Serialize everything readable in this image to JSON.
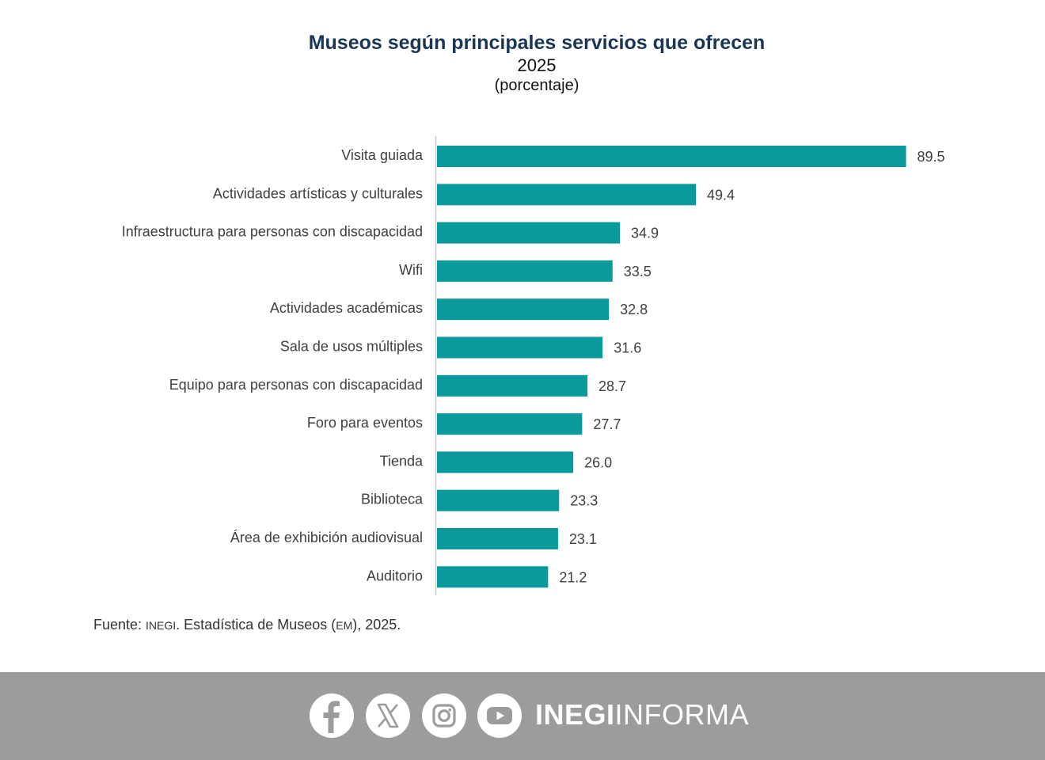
{
  "header": {
    "title": "Museos según principales servicios que ofrecen",
    "subtitle": "2025",
    "unit": "(porcentaje)"
  },
  "chart_data": {
    "type": "bar",
    "orientation": "horizontal",
    "title": "Museos según principales servicios que ofrecen",
    "subtitle": "2025",
    "ylabel": "(porcentaje)",
    "categories": [
      "Visita guiada",
      "Actividades artísticas y culturales",
      "Infraestructura para personas con discapacidad",
      "Wifi",
      "Actividades académicas",
      "Sala de usos múltiples",
      "Equipo para personas con discapacidad",
      "Foro para eventos",
      "Tienda",
      "Biblioteca",
      "Área de exhibición audiovisual",
      "Auditorio"
    ],
    "values": [
      89.5,
      49.4,
      34.9,
      33.5,
      32.8,
      31.6,
      28.7,
      27.7,
      26.0,
      23.3,
      23.1,
      21.2
    ],
    "value_labels": [
      "89.5",
      "49.4",
      "34.9",
      "33.5",
      "32.8",
      "31.6",
      "28.7",
      "27.7",
      "26.0",
      "23.3",
      "23.1",
      "21.2"
    ],
    "xlim": [
      0,
      100
    ],
    "grid": false,
    "bar_color": "#0a9a9c"
  },
  "source": {
    "prefix": "Fuente: ",
    "org": "INEGI",
    "middle": ". Estadística de Museos (",
    "abbr": "EM",
    "suffix": "), 2025."
  },
  "footer": {
    "icons": [
      "facebook-icon",
      "x-icon",
      "instagram-icon",
      "youtube-icon"
    ],
    "brand_bold": "INEGI",
    "brand_light": "INFORMA",
    "background": "#9c9c9c"
  }
}
